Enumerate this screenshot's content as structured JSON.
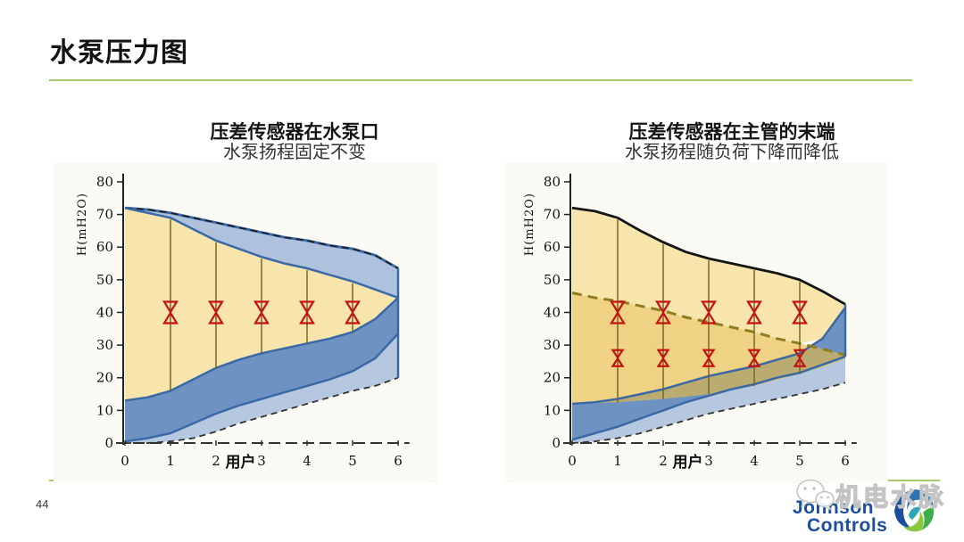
{
  "slide": {
    "title": "水泵压力图",
    "page_number": "44",
    "accent_color": "#a5c96b"
  },
  "colors": {
    "blue": "#3b68a6",
    "lightBlue": "#aec2de",
    "medBlue": "#6e93c2",
    "yellow": "#f7e5ab",
    "darkYellow": "#e9b93f",
    "olive": "#8f7d22",
    "red": "#c41212",
    "black": "#1a1a1a"
  },
  "chart_data": [
    {
      "type": "area",
      "title": "压差传感器在水泵口",
      "subtitle": "水泵扬程固定不变",
      "ylabel": "H(mH2O)",
      "xlabel": "用户",
      "xlim": [
        0,
        6
      ],
      "ylim": [
        0,
        80
      ],
      "yticks": [
        0,
        10,
        20,
        30,
        40,
        50,
        60,
        70,
        80
      ],
      "xticks": [
        0,
        1,
        2,
        3,
        4,
        5,
        6
      ],
      "x": [
        0,
        0.5,
        1,
        1.5,
        2,
        2.5,
        3,
        3.5,
        4,
        4.5,
        5,
        5.5,
        6
      ],
      "curves": {
        "outer_top": [
          72,
          71.5,
          70.5,
          69,
          67.5,
          66,
          64.5,
          63,
          62,
          60.5,
          59.5,
          57.5,
          53.5
        ],
        "yellow_top": [
          72,
          70.5,
          69,
          65.5,
          62,
          59.5,
          57,
          55,
          53.5,
          51.5,
          49.5,
          47,
          44.5
        ],
        "yellow_bottom": [
          13,
          14,
          16,
          19.5,
          23,
          25.5,
          27.5,
          29,
          30.5,
          32,
          34,
          38,
          44.5
        ],
        "mid_bottom": [
          0.5,
          1.5,
          3,
          6,
          9,
          11.5,
          13.5,
          15.5,
          17.5,
          19.5,
          22,
          26,
          33.5
        ],
        "lower_bottom": [
          0,
          0,
          0.5,
          1.5,
          3.5,
          6,
          8,
          10,
          12,
          14,
          16,
          17.5,
          20
        ]
      },
      "valve_rows": [
        {
          "y": 40,
          "xs": [
            1,
            2,
            3,
            4,
            5
          ]
        }
      ]
    },
    {
      "type": "area",
      "title": "压差传感器在主管的末端",
      "subtitle": "水泵扬程随负荷下降而降低",
      "ylabel": "H(mH2O)",
      "xlabel": "用户",
      "xlim": [
        0,
        6
      ],
      "ylim": [
        0,
        80
      ],
      "yticks": [
        0,
        10,
        20,
        30,
        40,
        50,
        60,
        70,
        80
      ],
      "xticks": [
        0,
        1,
        2,
        3,
        4,
        5,
        6
      ],
      "x": [
        0,
        0.5,
        1,
        1.5,
        2,
        2.5,
        3,
        3.5,
        4,
        4.5,
        5,
        5.5,
        6
      ],
      "curves": {
        "black_top": [
          72,
          71,
          69,
          65,
          61.5,
          58.5,
          56.5,
          55,
          53.5,
          52,
          50,
          46.5,
          42.5
        ],
        "setpoint": [
          46,
          44.5,
          43.5,
          42,
          40.5,
          38.5,
          37,
          35.5,
          34,
          32,
          30.5,
          28.8,
          27
        ],
        "light_yellow_bottom": [
          46,
          44.5,
          43.5,
          42,
          40.5,
          38.5,
          37,
          35.5,
          34,
          32,
          30.5,
          32,
          41.5
        ],
        "darkyellow_bottom": [
          12,
          12.2,
          12.5,
          13,
          13.5,
          14.2,
          15,
          16.2,
          17.5,
          19.3,
          21.2,
          23.3,
          25.8
        ],
        "band_top": [
          12,
          12.5,
          13.5,
          15,
          16.5,
          18.5,
          20.5,
          22,
          23.5,
          25.5,
          27.5,
          32,
          41.5
        ],
        "band_bottom": [
          1,
          3,
          5,
          7.5,
          10,
          12.5,
          14.5,
          16.5,
          18,
          20,
          21.5,
          24,
          26.5
        ],
        "lower_bottom": [
          0,
          0.5,
          1.5,
          3,
          5,
          7,
          9,
          10.5,
          12,
          13.5,
          15,
          16.5,
          18.5
        ]
      },
      "valve_rows": [
        {
          "y": 40,
          "xs": [
            1,
            2,
            3,
            4,
            5
          ]
        },
        {
          "y": 26,
          "xs": [
            1,
            2,
            3,
            4,
            5
          ]
        }
      ]
    }
  ],
  "footer": {
    "brand_line1": "Johnson",
    "brand_line2": "Controls",
    "watermark": "机电水脉"
  }
}
